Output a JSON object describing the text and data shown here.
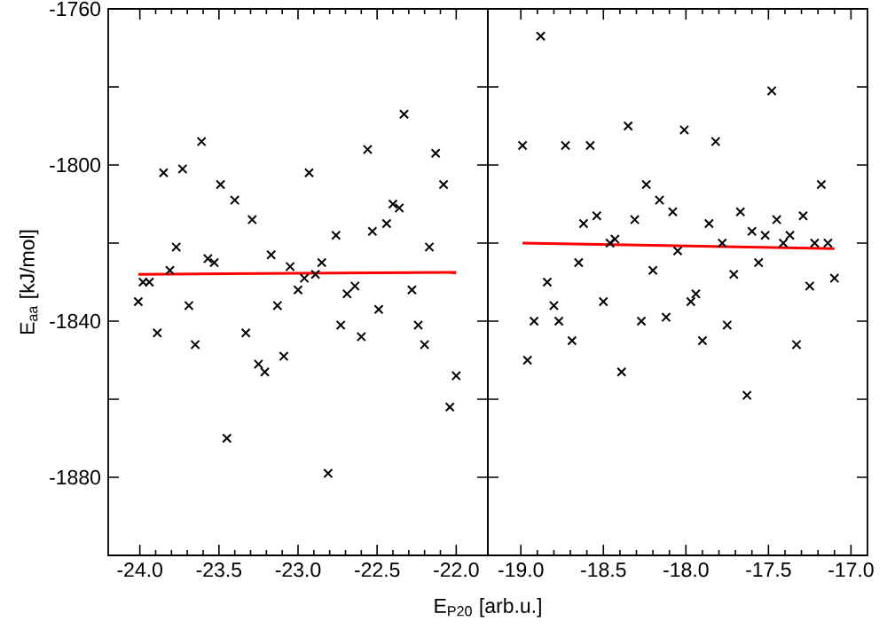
{
  "chart_data": [
    {
      "type": "scatter",
      "xlabel": "E$_{P20}$ [arb.u.]",
      "ylabel": "E$_{aa}$ [kJ/mol]",
      "xlim": [
        -24.2,
        -21.8
      ],
      "ylim": [
        -1900,
        -1760
      ],
      "xticks": [
        {
          "value": -24,
          "label": "-24.0"
        },
        {
          "value": -23.5,
          "label": "-23.5"
        },
        {
          "value": -23,
          "label": "-23.0"
        },
        {
          "value": -22.5,
          "label": "-22.5"
        },
        {
          "value": -22,
          "label": "-22.0"
        }
      ],
      "yticks": [
        -1760,
        {
          "value": -1780,
          "label": null
        },
        -1800,
        {
          "value": -1820,
          "label": null
        },
        -1840,
        {
          "value": -1860,
          "label": null
        },
        -1880
      ],
      "series": [
        {
          "color": "#000000",
          "marker": "cross",
          "x": [
            -24.01,
            -23.98,
            -23.94,
            -23.89,
            -23.85,
            -23.81,
            -23.77,
            -23.73,
            -23.69,
            -23.65,
            -23.61,
            -23.57,
            -23.53,
            -23.49,
            -23.45,
            -23.4,
            -23.33,
            -23.29,
            -23.25,
            -23.21,
            -23.17,
            -23.13,
            -23.09,
            -23.05,
            -23.0,
            -22.96,
            -22.93,
            -22.89,
            -22.85,
            -22.81,
            -22.76,
            -22.73,
            -22.69,
            -22.64,
            -22.6,
            -22.56,
            -22.53,
            -22.49,
            -22.44,
            -22.4,
            -22.36,
            -22.33,
            -22.28,
            -22.24,
            -22.2,
            -22.17,
            -22.13,
            -22.08,
            -22.04,
            -22.0
          ],
          "values": [
            -1835,
            -1830,
            -1830,
            -1843,
            -1802,
            -1827,
            -1821,
            -1801,
            -1836,
            -1846,
            -1794,
            -1824,
            -1825,
            -1805,
            -1870,
            -1809,
            -1843,
            -1814,
            -1851,
            -1853,
            -1823,
            -1836,
            -1849,
            -1826,
            -1832,
            -1829,
            -1802,
            -1828,
            -1825,
            -1879,
            -1818,
            -1841,
            -1833,
            -1831,
            -1844,
            -1796,
            -1817,
            -1837,
            -1815,
            -1810,
            -1811,
            -1787,
            -1832,
            -1841,
            -1846,
            -1821,
            -1797,
            -1805,
            -1862,
            -1854
          ]
        },
        {
          "type": "line",
          "color": "#ff0000",
          "marker": "none",
          "x": [
            -24.01,
            -22.0
          ],
          "values": [
            -1828,
            -1827.5
          ]
        }
      ]
    },
    {
      "type": "scatter",
      "xlim": [
        -19.2,
        -16.9
      ],
      "ylim": [
        -1900,
        -1760
      ],
      "tick_labels": "x",
      "xticks": [
        {
          "value": -19,
          "label": "-19.0"
        },
        {
          "value": -18.5,
          "label": "-18.5"
        },
        {
          "value": -18,
          "label": "-18.0"
        },
        {
          "value": -17.5,
          "label": "-17.5"
        },
        {
          "value": -17,
          "label": "-17.0"
        }
      ],
      "yticks": [
        -1760,
        {
          "value": -1780,
          "label": null
        },
        -1800,
        {
          "value": -1820,
          "label": null
        },
        -1840,
        {
          "value": -1860,
          "label": null
        },
        -1880
      ],
      "series": [
        {
          "color": "#000000",
          "marker": "cross",
          "x": [
            -18.99,
            -18.96,
            -18.92,
            -18.88,
            -18.84,
            -18.8,
            -18.77,
            -18.73,
            -18.69,
            -18.65,
            -18.62,
            -18.58,
            -18.54,
            -18.5,
            -18.46,
            -18.43,
            -18.39,
            -18.35,
            -18.31,
            -18.27,
            -18.24,
            -18.2,
            -18.16,
            -18.12,
            -18.08,
            -18.05,
            -18.01,
            -17.97,
            -17.94,
            -17.9,
            -17.86,
            -17.82,
            -17.78,
            -17.75,
            -17.71,
            -17.67,
            -17.63,
            -17.6,
            -17.56,
            -17.52,
            -17.48,
            -17.45,
            -17.41,
            -17.37,
            -17.33,
            -17.29,
            -17.25,
            -17.22,
            -17.18,
            -17.14,
            -17.1
          ],
          "values": [
            -1795,
            -1850,
            -1840,
            -1767,
            -1830,
            -1836,
            -1840,
            -1795,
            -1845,
            -1825,
            -1815,
            -1795,
            -1813,
            -1835,
            -1820,
            -1819,
            -1853,
            -1790,
            -1814,
            -1840,
            -1805,
            -1827,
            -1809,
            -1839,
            -1812,
            -1822,
            -1791,
            -1835,
            -1833,
            -1845,
            -1815,
            -1794,
            -1820,
            -1841,
            -1828,
            -1812,
            -1859,
            -1817,
            -1825,
            -1818,
            -1781,
            -1814,
            -1820,
            -1818,
            -1846,
            -1813,
            -1831,
            -1820,
            -1805,
            -1820,
            -1829
          ]
        },
        {
          "type": "line",
          "color": "#ff0000",
          "marker": "none",
          "x": [
            -18.99,
            -17.1
          ],
          "values": [
            -1820,
            -1821.4
          ]
        }
      ]
    }
  ]
}
